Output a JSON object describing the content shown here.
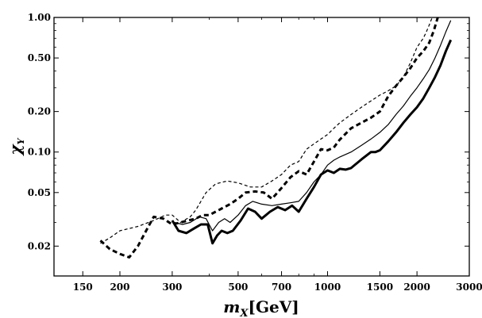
{
  "chart_data": {
    "type": "line",
    "title": "",
    "xlabel": "m_X[GeV]",
    "xlabel_base": "m",
    "xlabel_sub": "X",
    "xlabel_unit": "[GeV]",
    "ylabel": "χ_Y",
    "ylabel_base": "χ",
    "ylabel_sub": "Y",
    "xscale": "log",
    "yscale": "log",
    "xlim": [
      120,
      3000
    ],
    "ylim": [
      0.012,
      1.0
    ],
    "xticks": [
      150,
      200,
      300,
      500,
      700,
      1000,
      1500,
      2000,
      3000
    ],
    "xtick_labels": [
      "150",
      "200",
      "300",
      "500",
      "700",
      "1000",
      "1500",
      "2000",
      "3000"
    ],
    "yticks": [
      0.02,
      0.05,
      0.1,
      0.2,
      0.5,
      1.0
    ],
    "ytick_labels": [
      "0.02",
      "0.05",
      "0.10",
      "0.20",
      "0.50",
      "1.00"
    ],
    "grid": false,
    "legend": false,
    "series": [
      {
        "name": "thin-dashed",
        "style": "dashed",
        "weight": "thin",
        "points": [
          [
            172,
            0.021
          ],
          [
            185,
            0.023
          ],
          [
            200,
            0.026
          ],
          [
            230,
            0.028
          ],
          [
            260,
            0.031
          ],
          [
            285,
            0.034
          ],
          [
            300,
            0.034
          ],
          [
            320,
            0.03
          ],
          [
            345,
            0.033
          ],
          [
            360,
            0.037
          ],
          [
            390,
            0.05
          ],
          [
            420,
            0.058
          ],
          [
            460,
            0.061
          ],
          [
            500,
            0.059
          ],
          [
            550,
            0.055
          ],
          [
            600,
            0.055
          ],
          [
            650,
            0.061
          ],
          [
            700,
            0.068
          ],
          [
            750,
            0.08
          ],
          [
            800,
            0.085
          ],
          [
            850,
            0.105
          ],
          [
            900,
            0.115
          ],
          [
            950,
            0.125
          ],
          [
            1000,
            0.135
          ],
          [
            1050,
            0.15
          ],
          [
            1100,
            0.165
          ],
          [
            1200,
            0.19
          ],
          [
            1300,
            0.215
          ],
          [
            1400,
            0.24
          ],
          [
            1500,
            0.265
          ],
          [
            1600,
            0.285
          ],
          [
            1700,
            0.31
          ],
          [
            1800,
            0.36
          ],
          [
            1900,
            0.46
          ],
          [
            2000,
            0.6
          ],
          [
            2100,
            0.7
          ],
          [
            2150,
            0.78
          ],
          [
            2200,
            0.88
          ],
          [
            2250,
            1.0
          ]
        ]
      },
      {
        "name": "thick-dashed",
        "style": "dashed",
        "weight": "thick",
        "points": [
          [
            172,
            0.022
          ],
          [
            185,
            0.019
          ],
          [
            200,
            0.0175
          ],
          [
            215,
            0.0165
          ],
          [
            230,
            0.02
          ],
          [
            245,
            0.026
          ],
          [
            260,
            0.033
          ],
          [
            280,
            0.032
          ],
          [
            300,
            0.029
          ],
          [
            320,
            0.03
          ],
          [
            340,
            0.031
          ],
          [
            360,
            0.032
          ],
          [
            380,
            0.034
          ],
          [
            400,
            0.034
          ],
          [
            420,
            0.036
          ],
          [
            440,
            0.038
          ],
          [
            470,
            0.041
          ],
          [
            500,
            0.045
          ],
          [
            530,
            0.05
          ],
          [
            570,
            0.051
          ],
          [
            610,
            0.05
          ],
          [
            650,
            0.045
          ],
          [
            700,
            0.054
          ],
          [
            750,
            0.065
          ],
          [
            800,
            0.072
          ],
          [
            850,
            0.068
          ],
          [
            900,
            0.085
          ],
          [
            950,
            0.105
          ],
          [
            1000,
            0.103
          ],
          [
            1050,
            0.108
          ],
          [
            1100,
            0.124
          ],
          [
            1200,
            0.15
          ],
          [
            1300,
            0.165
          ],
          [
            1400,
            0.18
          ],
          [
            1500,
            0.2
          ],
          [
            1600,
            0.26
          ],
          [
            1700,
            0.31
          ],
          [
            1800,
            0.36
          ],
          [
            1900,
            0.42
          ],
          [
            2000,
            0.5
          ],
          [
            2100,
            0.56
          ],
          [
            2200,
            0.65
          ],
          [
            2280,
            0.8
          ],
          [
            2350,
            1.0
          ]
        ]
      },
      {
        "name": "thin-solid",
        "style": "solid",
        "weight": "thin",
        "points": [
          [
            305,
            0.03
          ],
          [
            325,
            0.029
          ],
          [
            345,
            0.03
          ],
          [
            370,
            0.033
          ],
          [
            390,
            0.032
          ],
          [
            410,
            0.026
          ],
          [
            430,
            0.03
          ],
          [
            450,
            0.032
          ],
          [
            470,
            0.03
          ],
          [
            500,
            0.034
          ],
          [
            530,
            0.04
          ],
          [
            560,
            0.043
          ],
          [
            600,
            0.041
          ],
          [
            650,
            0.04
          ],
          [
            700,
            0.041
          ],
          [
            750,
            0.042
          ],
          [
            800,
            0.043
          ],
          [
            850,
            0.05
          ],
          [
            900,
            0.06
          ],
          [
            950,
            0.068
          ],
          [
            1000,
            0.08
          ],
          [
            1050,
            0.087
          ],
          [
            1100,
            0.092
          ],
          [
            1200,
            0.1
          ],
          [
            1300,
            0.112
          ],
          [
            1400,
            0.125
          ],
          [
            1500,
            0.14
          ],
          [
            1600,
            0.16
          ],
          [
            1700,
            0.19
          ],
          [
            1800,
            0.22
          ],
          [
            1900,
            0.26
          ],
          [
            2000,
            0.3
          ],
          [
            2100,
            0.35
          ],
          [
            2200,
            0.41
          ],
          [
            2300,
            0.5
          ],
          [
            2400,
            0.62
          ],
          [
            2500,
            0.78
          ],
          [
            2600,
            0.95
          ]
        ]
      },
      {
        "name": "thick-solid",
        "style": "solid",
        "weight": "thick",
        "points": [
          [
            300,
            0.031
          ],
          [
            315,
            0.026
          ],
          [
            335,
            0.025
          ],
          [
            355,
            0.027
          ],
          [
            375,
            0.029
          ],
          [
            395,
            0.029
          ],
          [
            410,
            0.021
          ],
          [
            425,
            0.024
          ],
          [
            440,
            0.026
          ],
          [
            460,
            0.025
          ],
          [
            480,
            0.026
          ],
          [
            510,
            0.031
          ],
          [
            540,
            0.038
          ],
          [
            570,
            0.036
          ],
          [
            600,
            0.032
          ],
          [
            640,
            0.036
          ],
          [
            680,
            0.039
          ],
          [
            720,
            0.037
          ],
          [
            760,
            0.04
          ],
          [
            800,
            0.036
          ],
          [
            850,
            0.045
          ],
          [
            900,
            0.055
          ],
          [
            950,
            0.068
          ],
          [
            1000,
            0.073
          ],
          [
            1050,
            0.07
          ],
          [
            1100,
            0.075
          ],
          [
            1150,
            0.074
          ],
          [
            1200,
            0.076
          ],
          [
            1300,
            0.088
          ],
          [
            1400,
            0.1
          ],
          [
            1450,
            0.1
          ],
          [
            1500,
            0.103
          ],
          [
            1600,
            0.12
          ],
          [
            1700,
            0.14
          ],
          [
            1800,
            0.165
          ],
          [
            1900,
            0.19
          ],
          [
            2000,
            0.215
          ],
          [
            2100,
            0.25
          ],
          [
            2200,
            0.3
          ],
          [
            2300,
            0.36
          ],
          [
            2400,
            0.44
          ],
          [
            2500,
            0.56
          ],
          [
            2600,
            0.68
          ]
        ]
      }
    ]
  }
}
